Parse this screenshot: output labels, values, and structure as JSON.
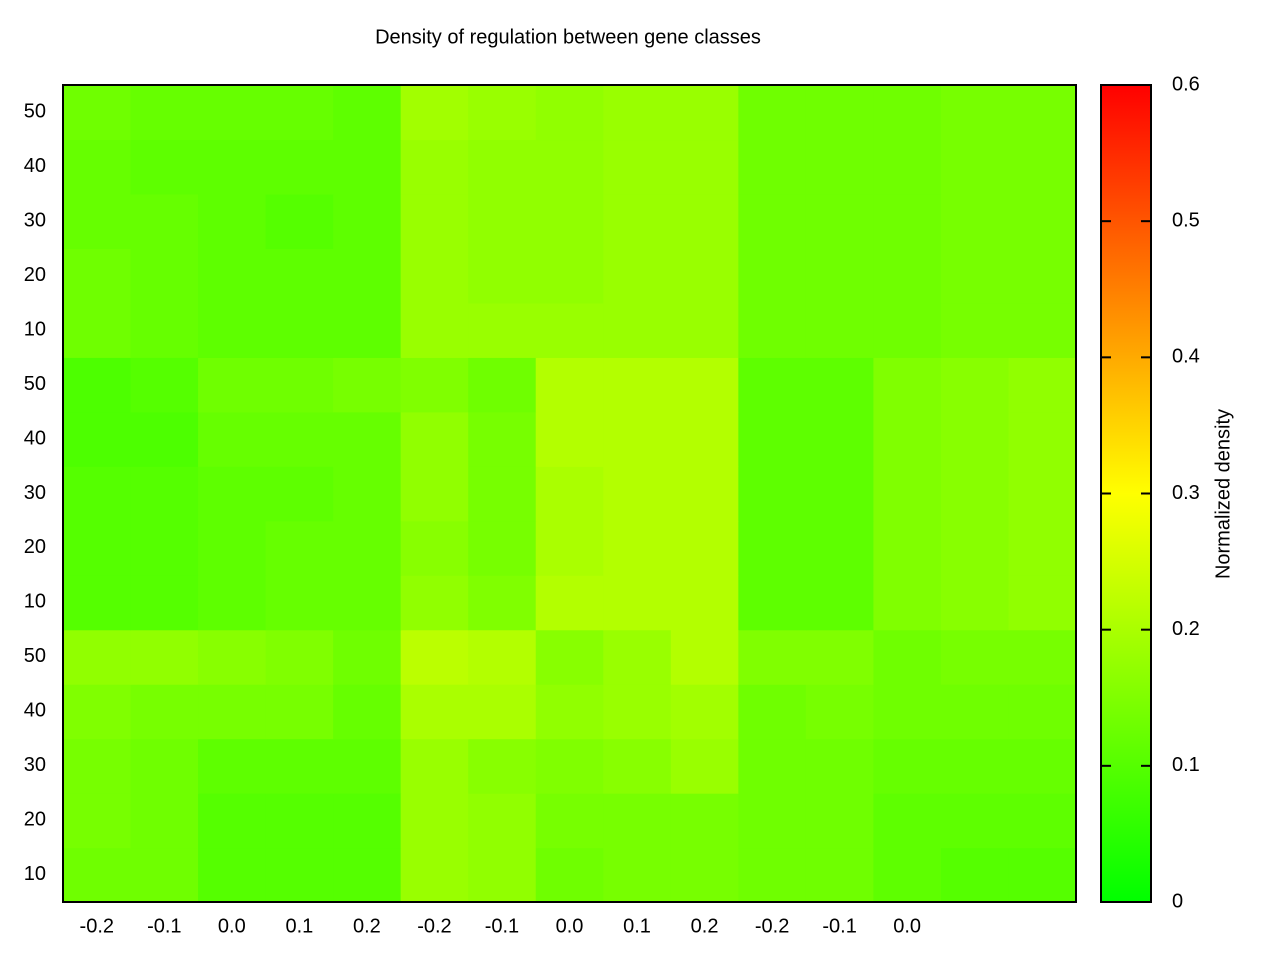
{
  "chart_data": {
    "type": "heatmap",
    "title": "Density of regulation between gene classes",
    "x_categories": [
      "-0.2",
      "-0.1",
      "0.0",
      "0.1",
      "0.2",
      "-0.2",
      "-0.1",
      "0.0",
      "0.1",
      "0.2",
      "-0.2",
      "-0.1",
      "0.0",
      null,
      null
    ],
    "y_categories": [
      "10",
      "20",
      "30",
      "40",
      "50",
      "10",
      "20",
      "30",
      "40",
      "50",
      "10",
      "20",
      "30",
      "40",
      "50"
    ],
    "z": [
      [
        0.13,
        0.13,
        0.1,
        0.1,
        0.1,
        0.18,
        0.17,
        0.13,
        0.14,
        0.14,
        0.13,
        0.13,
        0.11,
        0.1,
        0.1
      ],
      [
        0.14,
        0.13,
        0.1,
        0.1,
        0.1,
        0.18,
        0.17,
        0.14,
        0.14,
        0.14,
        0.13,
        0.13,
        0.11,
        0.11,
        0.11
      ],
      [
        0.14,
        0.13,
        0.11,
        0.11,
        0.11,
        0.18,
        0.16,
        0.15,
        0.16,
        0.18,
        0.13,
        0.13,
        0.12,
        0.12,
        0.12
      ],
      [
        0.15,
        0.14,
        0.14,
        0.14,
        0.12,
        0.2,
        0.2,
        0.17,
        0.18,
        0.19,
        0.13,
        0.14,
        0.13,
        0.13,
        0.13
      ],
      [
        0.17,
        0.17,
        0.16,
        0.15,
        0.13,
        0.22,
        0.21,
        0.16,
        0.18,
        0.21,
        0.15,
        0.15,
        0.13,
        0.14,
        0.14
      ],
      [
        0.1,
        0.1,
        0.11,
        0.12,
        0.12,
        0.17,
        0.15,
        0.21,
        0.21,
        0.21,
        0.11,
        0.11,
        0.15,
        0.16,
        0.17
      ],
      [
        0.1,
        0.1,
        0.11,
        0.12,
        0.12,
        0.16,
        0.14,
        0.2,
        0.21,
        0.21,
        0.11,
        0.11,
        0.15,
        0.16,
        0.17
      ],
      [
        0.1,
        0.1,
        0.11,
        0.11,
        0.12,
        0.17,
        0.14,
        0.2,
        0.21,
        0.21,
        0.11,
        0.11,
        0.15,
        0.16,
        0.17
      ],
      [
        0.09,
        0.09,
        0.12,
        0.12,
        0.12,
        0.17,
        0.14,
        0.21,
        0.21,
        0.21,
        0.11,
        0.11,
        0.15,
        0.16,
        0.17
      ],
      [
        0.09,
        0.1,
        0.13,
        0.13,
        0.14,
        0.15,
        0.13,
        0.21,
        0.21,
        0.21,
        0.11,
        0.11,
        0.15,
        0.16,
        0.17
      ],
      [
        0.13,
        0.12,
        0.11,
        0.11,
        0.11,
        0.18,
        0.18,
        0.18,
        0.18,
        0.18,
        0.13,
        0.13,
        0.13,
        0.14,
        0.14
      ],
      [
        0.13,
        0.12,
        0.11,
        0.11,
        0.11,
        0.18,
        0.17,
        0.17,
        0.18,
        0.18,
        0.13,
        0.13,
        0.13,
        0.14,
        0.14
      ],
      [
        0.12,
        0.12,
        0.11,
        0.1,
        0.11,
        0.18,
        0.17,
        0.17,
        0.18,
        0.18,
        0.13,
        0.13,
        0.13,
        0.14,
        0.14
      ],
      [
        0.12,
        0.11,
        0.11,
        0.11,
        0.11,
        0.18,
        0.17,
        0.17,
        0.18,
        0.18,
        0.13,
        0.13,
        0.13,
        0.14,
        0.14
      ],
      [
        0.13,
        0.12,
        0.12,
        0.12,
        0.11,
        0.19,
        0.18,
        0.17,
        0.18,
        0.18,
        0.13,
        0.13,
        0.13,
        0.14,
        0.14
      ]
    ],
    "colormap": [
      "#00ff00",
      "#ffff00",
      "#ff0000"
    ],
    "zlim": [
      0,
      0.6
    ],
    "zticks": [
      0,
      0.1,
      0.2,
      0.3,
      0.4,
      0.5,
      0.6
    ],
    "zlabel": "Normalized density"
  }
}
